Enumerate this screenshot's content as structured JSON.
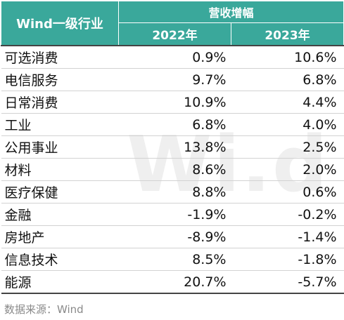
{
  "header": {
    "industry_label": "Wind一级行业",
    "group_label": "营收增幅",
    "years": [
      "2022年",
      "2023年"
    ]
  },
  "rows": [
    {
      "industry": "可选消费",
      "y2022": "0.9%",
      "y2023": "10.6%"
    },
    {
      "industry": "电信服务",
      "y2022": "9.7%",
      "y2023": "6.8%"
    },
    {
      "industry": "日常消费",
      "y2022": "10.9%",
      "y2023": "4.4%"
    },
    {
      "industry": "工业",
      "y2022": "6.8%",
      "y2023": "4.0%"
    },
    {
      "industry": "公用事业",
      "y2022": "13.8%",
      "y2023": "2.5%"
    },
    {
      "industry": "材料",
      "y2022": "8.6%",
      "y2023": "2.0%"
    },
    {
      "industry": "医疗保健",
      "y2022": "8.8%",
      "y2023": "0.6%"
    },
    {
      "industry": "金融",
      "y2022": "-1.9%",
      "y2023": "-0.2%"
    },
    {
      "industry": "房地产",
      "y2022": "-8.9%",
      "y2023": "-1.4%"
    },
    {
      "industry": "信息技术",
      "y2022": "8.5%",
      "y2023": "-1.8%"
    },
    {
      "industry": "能源",
      "y2022": "20.7%",
      "y2023": "-5.7%"
    }
  ],
  "watermark": "Wind",
  "source": "数据来源：Wind",
  "colors": {
    "header_bg": "#3aa89b",
    "header_text": "#ffffff",
    "source_text": "#8a8a8a"
  }
}
